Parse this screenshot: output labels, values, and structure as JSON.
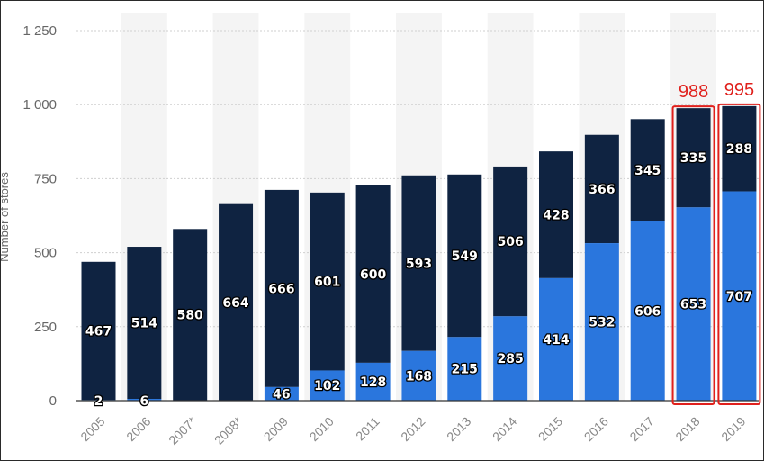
{
  "chart_data": {
    "type": "bar",
    "stacked": true,
    "categories": [
      "2005",
      "2006",
      "2007*",
      "2008*",
      "2009",
      "2010",
      "2011",
      "2012",
      "2013",
      "2014",
      "2015",
      "2016",
      "2017",
      "2018",
      "2019"
    ],
    "series": [
      {
        "values": [
          2,
          6,
          0,
          0,
          46,
          102,
          128,
          168,
          215,
          285,
          414,
          532,
          606,
          653,
          707
        ],
        "color": "#2a76dd"
      },
      {
        "values": [
          467,
          514,
          580,
          664,
          666,
          601,
          600,
          593,
          549,
          506,
          428,
          366,
          345,
          335,
          288
        ],
        "color": "#0f2341"
      }
    ],
    "bar_labels": {
      "lower": [
        "2",
        "6",
        "",
        "",
        "46",
        "102",
        "128",
        "168",
        "215",
        "285",
        "414",
        "532",
        "606",
        "653",
        "707"
      ],
      "upper": [
        "467",
        "514",
        "580",
        "664",
        "666",
        "601",
        "600",
        "593",
        "549",
        "506",
        "428",
        "366",
        "345",
        "335",
        "288"
      ]
    },
    "annotations": [
      {
        "category": "2018",
        "text": "988",
        "highlight": true
      },
      {
        "category": "2019",
        "text": "995",
        "highlight": true
      }
    ],
    "ylabel": "Number of stores",
    "yticks": [
      "0",
      "250",
      "500",
      "750",
      "1 000",
      "1 250"
    ],
    "ytick_values": [
      0,
      250,
      500,
      750,
      1000,
      1250
    ],
    "ylim": [
      0,
      1250
    ],
    "grid": true,
    "legend": "none",
    "colors": {
      "lower": "#2a76dd",
      "upper": "#0f2341",
      "highlight": "#e0201c",
      "band": "#f4f4f4",
      "grid": "#cfcfcf"
    }
  }
}
